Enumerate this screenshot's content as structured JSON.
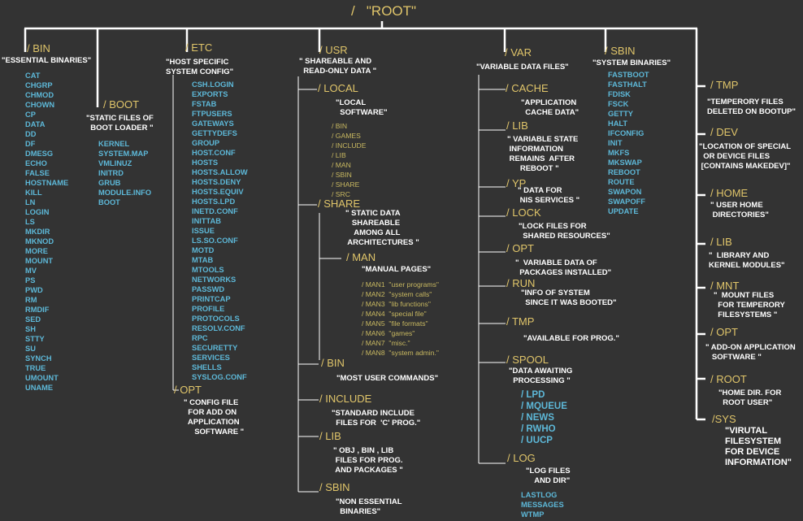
{
  "root": "/   \"ROOT\"",
  "bin": {
    "name": "/ BIN",
    "desc": "\"ESSENTIAL BINARIES\"",
    "items": "CAT\nCHGRP\nCHMOD\nCHOWN\nCP\nDATA\nDD\nDF\nDMESG\nECHO\nFALSE\nHOSTNAME\nKILL\nLN\nLOGIN\nLS\nMKDIR\nMKNOD\nMORE\nMOUNT\nMV\nPS\nPWD\nRM\nRMDIF\nSED\nSH\nSTTY\nSU\nSYNCH\nTRUE\nUMOUNT\nUNAME"
  },
  "boot": {
    "name": "/ BOOT",
    "desc": "\"STATIC FILES OF\n  BOOT LOADER \"",
    "items": "KERNEL\nSYSTEM.MAP\nVMLINUZ\nINITRD\nGRUB\nMODULE.INFO\nBOOT"
  },
  "etc": {
    "name": "/ ETC",
    "desc": "\"HOST SPECIFIC\nSYSTEM CONFIG\"",
    "items": "CSH.LOGIN\nEXPORTS\nFSTAB\nFTPUSERS\nGATEWAYS\nGETTYDEFS\nGROUP\nHOST.CONF\nHOSTS\nHOSTS.ALLOW\nHOSTS.DENY\nHOSTS.EQUIV\nHOSTS.LPD\nINETD.CONF\nINITTAB\nISSUE\nLS.SO.CONF\nMOTD\nMTAB\nMTOOLS\nNETWORKS\nPASSWD\nPRINTCAP\nPROFILE\nPROTOCOLS\nRESOLV.CONF\nRPC\nSECURETTY\nSERVICES\nSHELLS\nSYSLOG.CONF",
    "opt_name": "/ OPT",
    "opt_desc": "\" CONFIG FILE\n  FOR ADD ON\n  APPLICATION\n     SOFTWARE \""
  },
  "usr": {
    "name": "/ USR",
    "desc": "\" SHAREABLE AND\n  READ-ONLY DATA \"",
    "local": {
      "name": "/ LOCAL",
      "desc": "\"LOCAL\n  SOFTWARE\"",
      "items": "/ BIN\n/ GAMES\n/ INCLUDE\n/ LIB\n/ MAN\n/ SBIN\n/ SHARE\n/ SRC"
    },
    "share": {
      "name": "/ SHARE",
      "desc": "\" STATIC DATA\n   SHAREABLE\n    AMONG ALL\n ARCHITECTURES \""
    },
    "man": {
      "name": "/ MAN",
      "desc": "\"MANUAL PAGES\"",
      "items": "/ MAN1  \"user programs\"\n/ MAN2  \"system calls\"\n/ MAN3  \"lib functions\"\n/ MAN4  \"special file\"\n/ MAN5  \"file formats\"\n/ MAN6  \"games\"\n/ MAN7  \"misc.\"\n/ MAN8  \"system admin.\""
    },
    "bin": {
      "name": "/ BIN",
      "desc": "\"MOST USER COMMANDS\""
    },
    "include": {
      "name": "/ INCLUDE",
      "desc": "\"STANDARD INCLUDE\n  FILES FOR  'C' PROG.\""
    },
    "lib": {
      "name": "/ LIB",
      "desc": "\" OBJ , BIN , LIB\n FILES FOR PROG.\n AND PACKAGES \""
    },
    "sbin": {
      "name": "/ SBIN",
      "desc": "\"NON ESSENTIAL\n  BINARIES\""
    }
  },
  "var": {
    "name": "/ VAR",
    "desc": "\"VARIABLE DATA FILES\"",
    "cache": {
      "name": "/ CACHE",
      "desc": "\"APPLICATION\n  CACHE DATA\""
    },
    "lib": {
      "name": "/ LIB",
      "desc": "\" VARIABLE STATE\n INFORMATION\n REMAINS  AFTER\n      REBOOT \""
    },
    "yp": {
      "name": "/ YP",
      "desc": "\" DATA FOR\n NIS SERVICES \""
    },
    "lock": {
      "name": "/ LOCK",
      "desc": "\"LOCK FILES FOR\n  SHARED RESOURCES\""
    },
    "opt": {
      "name": "/ OPT",
      "desc": "\"  VARIABLE DATA OF\n  PACKAGES INSTALLED\""
    },
    "run": {
      "name": "/ RUN",
      "desc": "\"INFO OF SYSTEM\n  SINCE IT WAS BOOTED\""
    },
    "tmp": {
      "name": "/ TMP",
      "desc": "\"AVAILABLE FOR PROG.\""
    },
    "spool": {
      "name": "/ SPOOL",
      "desc": "\"DATA AWAITING\n  PROCESSING \"",
      "items": "/ LPD\n/ MQUEUE\n/ NEWS\n/ RWHO\n/ UUCP"
    },
    "log": {
      "name": "/ LOG",
      "desc": "\"LOG FILES\n    AND DIR\"",
      "items": "LASTLOG\nMESSAGES\nWTMP"
    }
  },
  "sbin": {
    "name": "/ SBIN",
    "desc": "\"SYSTEM BINARIES\"",
    "items": "FASTBOOT\nFASTHALT\nFDISK\nFSCK\nGETTY\nHALT\nIFCONFIG\nINIT\nMKFS\nMKSWAP\nREBOOT\nROUTE\nSWAPON\nSWAPOFF\nUPDATE"
  },
  "right": {
    "tmp": {
      "name": "/ TMP",
      "desc": "\"TEMPERORY FILES\nDELETED ON BOOTUP\""
    },
    "dev": {
      "name": "/ DEV",
      "desc": "\"LOCATION OF SPECIAL\n  OR DEVICE FILES\n [CONTAINS MAKEDEV]\""
    },
    "home": {
      "name": "/ HOME",
      "desc": "\" USER HOME\n DIRECTORIES\""
    },
    "lib": {
      "name": "/ LIB",
      "desc": "\"  LIBRARY AND\nKERNEL MODULES\""
    },
    "mnt": {
      "name": "/ MNT",
      "desc": "\"  MOUNT FILES\n  FOR TEMPERORY\n  FILESYSTEMS \""
    },
    "opt": {
      "name": "/ OPT",
      "desc": "\" ADD-ON APPLICATION\n   SOFTWARE \""
    },
    "root": {
      "name": "/ ROOT",
      "desc": "\"HOME DIR. FOR\n  ROOT USER\""
    },
    "sys": {
      "name": "/SYS",
      "desc": "\"VIRUTAL\nFILESYSTEM\nFOR DEVICE\nINFORMATION\""
    }
  }
}
